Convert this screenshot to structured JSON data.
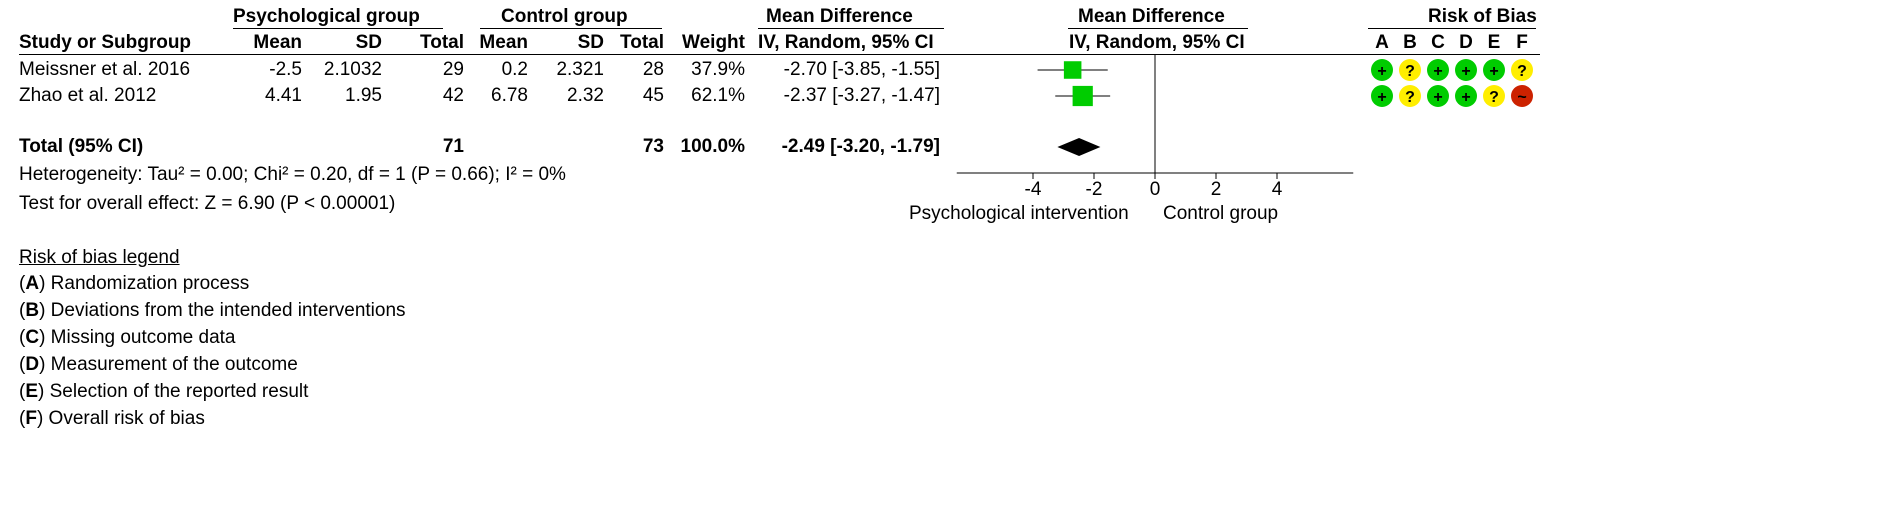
{
  "header": {
    "group1": "Psychological group",
    "group2": "Control group",
    "md_top": "Mean Difference",
    "md_top_plot": "Mean Difference",
    "rob_top": "Risk of Bias",
    "study_col": "Study or Subgroup",
    "mean1": "Mean",
    "sd1": "SD",
    "total1": "Total",
    "mean2": "Mean",
    "sd2": "SD",
    "total2": "Total",
    "weight": "Weight",
    "ci_col": "IV, Random, 95% CI",
    "ci_col_plot": "IV, Random, 95% CI",
    "rob_letters": [
      "A",
      "B",
      "C",
      "D",
      "E",
      "F"
    ]
  },
  "studies": [
    {
      "name": "Meissner et al. 2016",
      "mean1": "-2.5",
      "sd1": "2.1032",
      "total1": "29",
      "mean2": "0.2",
      "sd2": "2.321",
      "total2": "28",
      "weight": "37.9%",
      "ci": "-2.70 [-3.85, -1.55]",
      "rob": [
        {
          "symbol": "+",
          "level": "low"
        },
        {
          "symbol": "?",
          "level": "some"
        },
        {
          "symbol": "+",
          "level": "low"
        },
        {
          "symbol": "+",
          "level": "low"
        },
        {
          "symbol": "+",
          "level": "low"
        },
        {
          "symbol": "?",
          "level": "some"
        }
      ]
    },
    {
      "name": "Zhao et al. 2012",
      "mean1": "4.41",
      "sd1": "1.95",
      "total1": "42",
      "mean2": "6.78",
      "sd2": "2.32",
      "total2": "45",
      "weight": "62.1%",
      "ci": "-2.37 [-3.27, -1.47]",
      "rob": [
        {
          "symbol": "+",
          "level": "low"
        },
        {
          "symbol": "?",
          "level": "some"
        },
        {
          "symbol": "+",
          "level": "low"
        },
        {
          "symbol": "+",
          "level": "low"
        },
        {
          "symbol": "?",
          "level": "some"
        },
        {
          "symbol": "~",
          "level": "high"
        }
      ]
    }
  ],
  "total": {
    "label": "Total (95% CI)",
    "total1": "71",
    "total2": "73",
    "weight": "100.0%",
    "ci": "-2.49 [-3.20, -1.79]"
  },
  "heterogeneity": "Heterogeneity: Tau² = 0.00; Chi² = 0.20, df = 1 (P = 0.66); I² = 0%",
  "overall_effect": "Test for overall effect: Z = 6.90 (P < 0.00001)",
  "plot_labels": {
    "left": "Psychological intervention",
    "right": "Control group"
  },
  "legend": {
    "title": "Risk of bias legend",
    "items": [
      {
        "letter": "A",
        "text": "Randomization process"
      },
      {
        "letter": "B",
        "text": "Deviations from the intended interventions"
      },
      {
        "letter": "C",
        "text": "Missing outcome data"
      },
      {
        "letter": "D",
        "text": "Measurement of the outcome"
      },
      {
        "letter": "E",
        "text": "Selection of the reported result"
      },
      {
        "letter": "F",
        "text": "Overall risk of bias"
      }
    ]
  },
  "colors": {
    "study_marker": "#00cc00",
    "summary_diamond": "#000000",
    "rob_low": "#00cc00",
    "rob_some": "#ffee00",
    "rob_high": "#cc2200"
  },
  "chart_data": {
    "type": "forest",
    "x_ticks": [
      "-4",
      "-2",
      "0",
      "2",
      "4"
    ],
    "xlim": [
      -6.5,
      6.5
    ],
    "series": [
      {
        "name": "Meissner et al. 2016",
        "estimate": -2.7,
        "lower": -3.85,
        "upper": -1.55,
        "weight": 37.9
      },
      {
        "name": "Zhao et al. 2012",
        "estimate": -2.37,
        "lower": -3.27,
        "upper": -1.47,
        "weight": 62.1
      }
    ],
    "summary": {
      "estimate": -2.49,
      "lower": -3.2,
      "upper": -1.79
    }
  }
}
